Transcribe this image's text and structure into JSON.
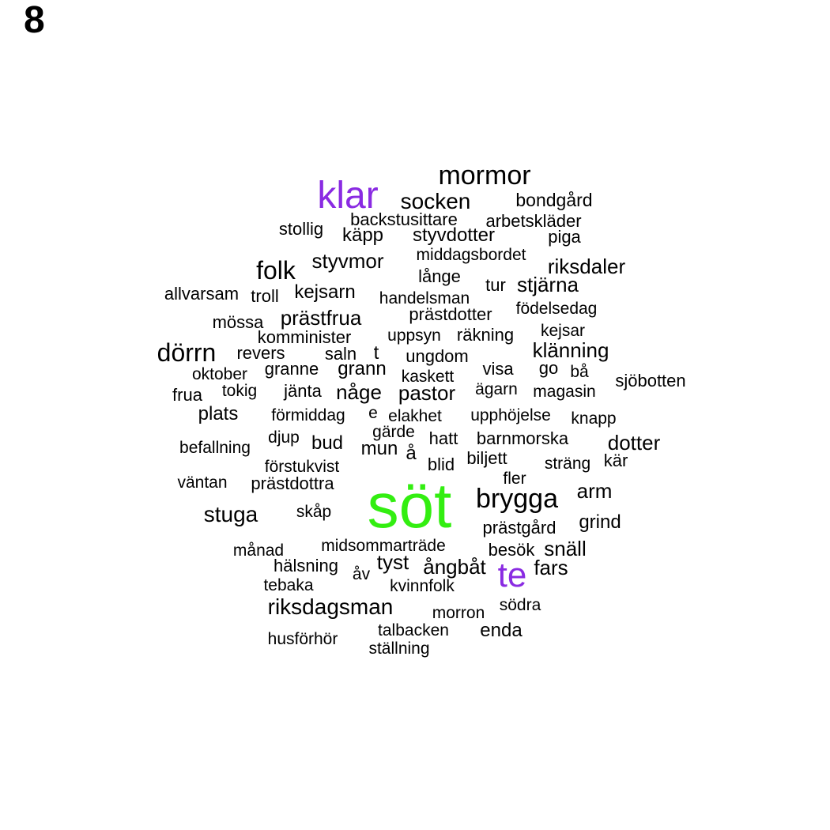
{
  "panel_label": "8",
  "colors": {
    "default": "#000000",
    "highlight_purple": "#8a2be2",
    "highlight_green": "#33ee11"
  },
  "words": [
    {
      "text": "söt",
      "color": "#33ee11",
      "weight": 9
    },
    {
      "text": "klar",
      "color": "#8a2be2",
      "weight": 5
    },
    {
      "text": "te",
      "color": "#8a2be2",
      "weight": 4
    },
    {
      "text": "mormor",
      "color": "#000000",
      "weight": 3
    },
    {
      "text": "socken",
      "color": "#000000",
      "weight": 2
    },
    {
      "text": "bondgård",
      "color": "#000000",
      "weight": 1
    },
    {
      "text": "backstusittare",
      "color": "#000000",
      "weight": 1
    },
    {
      "text": "arbetskläder",
      "color": "#000000",
      "weight": 1
    },
    {
      "text": "stollig",
      "color": "#000000",
      "weight": 1
    },
    {
      "text": "käpp",
      "color": "#000000",
      "weight": 1
    },
    {
      "text": "styvdotter",
      "color": "#000000",
      "weight": 1
    },
    {
      "text": "piga",
      "color": "#000000",
      "weight": 1
    },
    {
      "text": "styvmor",
      "color": "#000000",
      "weight": 2
    },
    {
      "text": "middagsbordet",
      "color": "#000000",
      "weight": 1
    },
    {
      "text": "folk",
      "color": "#000000",
      "weight": 3
    },
    {
      "text": "riksdaler",
      "color": "#000000",
      "weight": 2
    },
    {
      "text": "långe",
      "color": "#000000",
      "weight": 1
    },
    {
      "text": "tur",
      "color": "#000000",
      "weight": 1
    },
    {
      "text": "stjärna",
      "color": "#000000",
      "weight": 2
    },
    {
      "text": "allvarsam",
      "color": "#000000",
      "weight": 1
    },
    {
      "text": "troll",
      "color": "#000000",
      "weight": 1
    },
    {
      "text": "kejsarn",
      "color": "#000000",
      "weight": 1
    },
    {
      "text": "handelsman",
      "color": "#000000",
      "weight": 1
    },
    {
      "text": "födelsedag",
      "color": "#000000",
      "weight": 1
    },
    {
      "text": "mössa",
      "color": "#000000",
      "weight": 1
    },
    {
      "text": "prästfrua",
      "color": "#000000",
      "weight": 2
    },
    {
      "text": "prästdotter",
      "color": "#000000",
      "weight": 1
    },
    {
      "text": "kejsar",
      "color": "#000000",
      "weight": 1
    },
    {
      "text": "komminister",
      "color": "#000000",
      "weight": 1
    },
    {
      "text": "uppsyn",
      "color": "#000000",
      "weight": 1
    },
    {
      "text": "räkning",
      "color": "#000000",
      "weight": 1
    },
    {
      "text": "dörrn",
      "color": "#000000",
      "weight": 3
    },
    {
      "text": "revers",
      "color": "#000000",
      "weight": 1
    },
    {
      "text": "saln",
      "color": "#000000",
      "weight": 1
    },
    {
      "text": "t",
      "color": "#000000",
      "weight": 1
    },
    {
      "text": "ungdom",
      "color": "#000000",
      "weight": 1
    },
    {
      "text": "klänning",
      "color": "#000000",
      "weight": 2
    },
    {
      "text": "oktober",
      "color": "#000000",
      "weight": 1
    },
    {
      "text": "granne",
      "color": "#000000",
      "weight": 1
    },
    {
      "text": "grann",
      "color": "#000000",
      "weight": 2
    },
    {
      "text": "kaskett",
      "color": "#000000",
      "weight": 1
    },
    {
      "text": "visa",
      "color": "#000000",
      "weight": 1
    },
    {
      "text": "go",
      "color": "#000000",
      "weight": 1
    },
    {
      "text": "bå",
      "color": "#000000",
      "weight": 1
    },
    {
      "text": "sjöbotten",
      "color": "#000000",
      "weight": 1
    },
    {
      "text": "frua",
      "color": "#000000",
      "weight": 1
    },
    {
      "text": "tokig",
      "color": "#000000",
      "weight": 1
    },
    {
      "text": "jänta",
      "color": "#000000",
      "weight": 1
    },
    {
      "text": "någe",
      "color": "#000000",
      "weight": 2
    },
    {
      "text": "pastor",
      "color": "#000000",
      "weight": 2
    },
    {
      "text": "ägarn",
      "color": "#000000",
      "weight": 1
    },
    {
      "text": "magasin",
      "color": "#000000",
      "weight": 1
    },
    {
      "text": "plats",
      "color": "#000000",
      "weight": 2
    },
    {
      "text": "förmiddag",
      "color": "#000000",
      "weight": 1
    },
    {
      "text": "e",
      "color": "#000000",
      "weight": 1
    },
    {
      "text": "elakhet",
      "color": "#000000",
      "weight": 1
    },
    {
      "text": "upphöjelse",
      "color": "#000000",
      "weight": 1
    },
    {
      "text": "knapp",
      "color": "#000000",
      "weight": 1
    },
    {
      "text": "gärde",
      "color": "#000000",
      "weight": 1
    },
    {
      "text": "djup",
      "color": "#000000",
      "weight": 1
    },
    {
      "text": "hatt",
      "color": "#000000",
      "weight": 1
    },
    {
      "text": "barnmorska",
      "color": "#000000",
      "weight": 1
    },
    {
      "text": "befallning",
      "color": "#000000",
      "weight": 1
    },
    {
      "text": "bud",
      "color": "#000000",
      "weight": 2
    },
    {
      "text": "mun",
      "color": "#000000",
      "weight": 2
    },
    {
      "text": "å",
      "color": "#000000",
      "weight": 2
    },
    {
      "text": "dotter",
      "color": "#000000",
      "weight": 2
    },
    {
      "text": "förstukvist",
      "color": "#000000",
      "weight": 1
    },
    {
      "text": "blid",
      "color": "#000000",
      "weight": 1
    },
    {
      "text": "biljett",
      "color": "#000000",
      "weight": 1
    },
    {
      "text": "sträng",
      "color": "#000000",
      "weight": 1
    },
    {
      "text": "kär",
      "color": "#000000",
      "weight": 1
    },
    {
      "text": "väntan",
      "color": "#000000",
      "weight": 1
    },
    {
      "text": "prästdottra",
      "color": "#000000",
      "weight": 1
    },
    {
      "text": "fler",
      "color": "#000000",
      "weight": 1
    },
    {
      "text": "brygga",
      "color": "#000000",
      "weight": 3
    },
    {
      "text": "arm",
      "color": "#000000",
      "weight": 2
    },
    {
      "text": "stuga",
      "color": "#000000",
      "weight": 2
    },
    {
      "text": "skåp",
      "color": "#000000",
      "weight": 1
    },
    {
      "text": "prästgård",
      "color": "#000000",
      "weight": 1
    },
    {
      "text": "grind",
      "color": "#000000",
      "weight": 2
    },
    {
      "text": "månad",
      "color": "#000000",
      "weight": 1
    },
    {
      "text": "midsommarträde",
      "color": "#000000",
      "weight": 1
    },
    {
      "text": "besök",
      "color": "#000000",
      "weight": 1
    },
    {
      "text": "snäll",
      "color": "#000000",
      "weight": 2
    },
    {
      "text": "hälsning",
      "color": "#000000",
      "weight": 1
    },
    {
      "text": "tyst",
      "color": "#000000",
      "weight": 2
    },
    {
      "text": "ångbåt",
      "color": "#000000",
      "weight": 2
    },
    {
      "text": "fars",
      "color": "#000000",
      "weight": 2
    },
    {
      "text": "åv",
      "color": "#000000",
      "weight": 1
    },
    {
      "text": "tebaka",
      "color": "#000000",
      "weight": 1
    },
    {
      "text": "kvinnfolk",
      "color": "#000000",
      "weight": 1
    },
    {
      "text": "riksdagsman",
      "color": "#000000",
      "weight": 2
    },
    {
      "text": "morron",
      "color": "#000000",
      "weight": 1
    },
    {
      "text": "södra",
      "color": "#000000",
      "weight": 1
    },
    {
      "text": "talbacken",
      "color": "#000000",
      "weight": 1
    },
    {
      "text": "enda",
      "color": "#000000",
      "weight": 2
    },
    {
      "text": "husförhör",
      "color": "#000000",
      "weight": 1
    },
    {
      "text": "ställning",
      "color": "#000000",
      "weight": 1
    }
  ]
}
